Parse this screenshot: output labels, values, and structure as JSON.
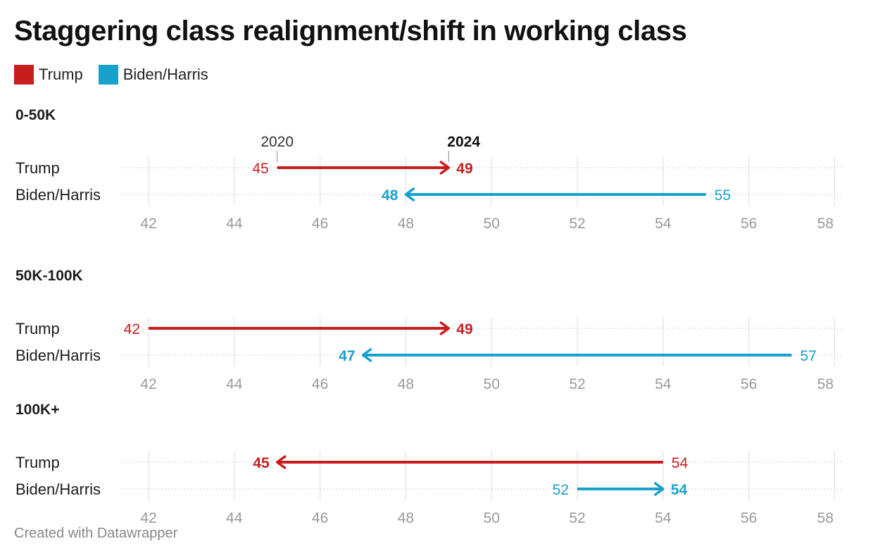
{
  "chart_data": {
    "type": "dot-arrow",
    "title": "Staggering class realignment/shift in working class",
    "legend": [
      {
        "label": "Trump",
        "color": "#c71e1d"
      },
      {
        "label": "Biden/Harris",
        "color": "#18a1cd"
      }
    ],
    "year_labels": {
      "from": "2020",
      "to": "2024"
    },
    "xlim": [
      42,
      58
    ],
    "x_ticks": [
      42,
      44,
      46,
      48,
      50,
      52,
      54,
      56,
      58
    ],
    "panels": [
      {
        "title": "0-50K",
        "rows": [
          {
            "label": "Trump",
            "from": 45,
            "to": 49,
            "color": "#c71e1d"
          },
          {
            "label": "Biden/Harris",
            "from": 55,
            "to": 48,
            "color": "#18a1cd"
          }
        ]
      },
      {
        "title": "50K-100K",
        "rows": [
          {
            "label": "Trump",
            "from": 42,
            "to": 49,
            "color": "#c71e1d"
          },
          {
            "label": "Biden/Harris",
            "from": 57,
            "to": 47,
            "color": "#18a1cd"
          }
        ]
      },
      {
        "title": "100K+",
        "rows": [
          {
            "label": "Trump",
            "from": 54,
            "to": 45,
            "color": "#c71e1d"
          },
          {
            "label": "Biden/Harris",
            "from": 52,
            "to": 54,
            "color": "#18a1cd"
          }
        ]
      }
    ]
  },
  "footer": "Created with Datawrapper"
}
